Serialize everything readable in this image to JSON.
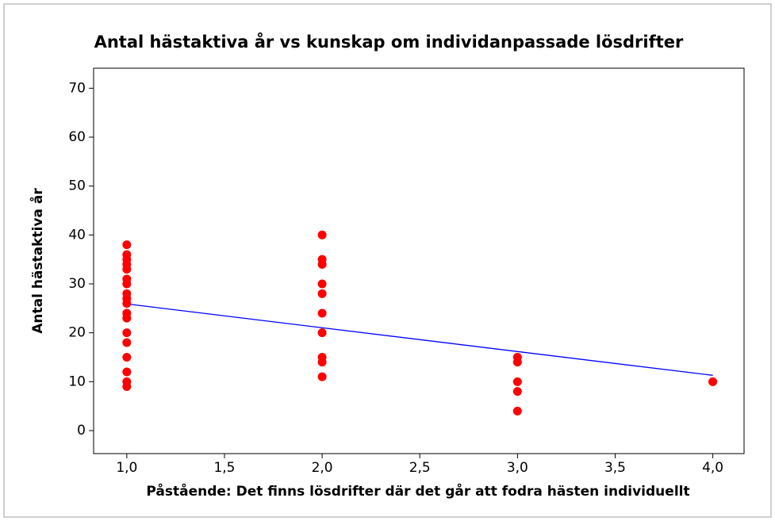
{
  "chart_data": {
    "type": "scatter",
    "title": "Antal hästaktiva år vs kunskap om individanpassade lösdrifter",
    "xlabel": "Påstående: Det finns lösdrifter där det går att fodra hästen individuellt",
    "ylabel": "Antal hästaktiva år",
    "x": [
      1,
      1,
      1,
      1,
      1,
      1,
      1,
      1,
      1,
      1,
      1,
      1,
      1,
      1,
      1,
      1,
      1,
      1,
      2,
      2,
      2,
      2,
      2,
      2,
      2,
      2,
      2,
      2,
      3,
      3,
      3,
      3,
      3,
      4
    ],
    "y": [
      38,
      36,
      35,
      34,
      33,
      31,
      30,
      28,
      27,
      26,
      24,
      23,
      20,
      18,
      15,
      12,
      10,
      9,
      40,
      35,
      34,
      30,
      28,
      24,
      20,
      15,
      14,
      11,
      15,
      14,
      10,
      8,
      4,
      10
    ],
    "color": "#ff0000",
    "fit_line": {
      "x": [
        1,
        4
      ],
      "y": [
        25.9,
        11.3
      ],
      "color": "#0000ff"
    },
    "xlim": [
      0.83,
      4.16
    ],
    "ylim": [
      -4.7,
      74.1
    ],
    "xticks": [
      {
        "value": 1,
        "label": "1,0"
      },
      {
        "value": 1.5,
        "label": "1,5"
      },
      {
        "value": 2,
        "label": "2,0"
      },
      {
        "value": 2.5,
        "label": "2,5"
      },
      {
        "value": 3,
        "label": "3,0"
      },
      {
        "value": 3.5,
        "label": "3,5"
      },
      {
        "value": 4,
        "label": "4,0"
      }
    ],
    "yticks": [
      0,
      10,
      20,
      30,
      40,
      50,
      60,
      70
    ]
  }
}
